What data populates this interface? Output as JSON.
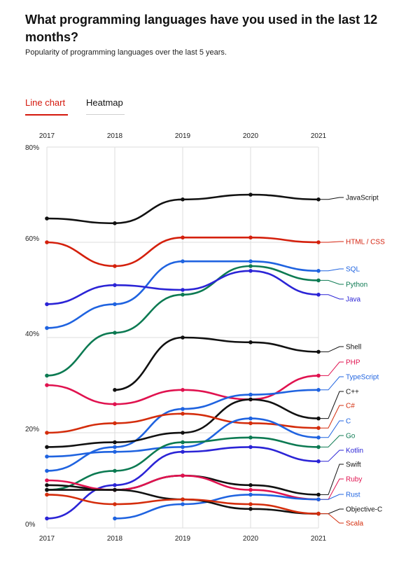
{
  "header": {
    "title": "What programming languages have you used in the last 12 months?",
    "subtitle": "Popularity of programming languages over the last 5 years."
  },
  "tabs": [
    {
      "label": "Line chart",
      "active": true
    },
    {
      "label": "Heatmap",
      "active": false
    }
  ],
  "chart_data": {
    "type": "line",
    "x": [
      "2017",
      "2018",
      "2019",
      "2020",
      "2021"
    ],
    "ylim": [
      0,
      80
    ],
    "y_ticks": [
      "0%",
      "20%",
      "40%",
      "60%",
      "80%"
    ],
    "y_tick_values": [
      0,
      20,
      40,
      60,
      80
    ],
    "grid": true,
    "legend": "right-end labels",
    "series": [
      {
        "name": "JavaScript",
        "color": "#111111",
        "values": [
          65,
          64,
          69,
          70,
          69
        ]
      },
      {
        "name": "HTML / CSS",
        "color": "#d4200c",
        "values": [
          60,
          55,
          61,
          61,
          60
        ]
      },
      {
        "name": "SQL",
        "color": "#1f63e0",
        "values": [
          42,
          47,
          56,
          56,
          54
        ]
      },
      {
        "name": "Python",
        "color": "#0c7a52",
        "values": [
          32,
          41,
          49,
          55,
          52
        ]
      },
      {
        "name": "Java",
        "color": "#2b24d6",
        "values": [
          47,
          51,
          50,
          54,
          49
        ]
      },
      {
        "name": "Shell",
        "color": "#111111",
        "values": [
          null,
          29,
          40,
          39,
          37
        ]
      },
      {
        "name": "PHP",
        "color": "#e0124f",
        "values": [
          30,
          26,
          29,
          27,
          32
        ]
      },
      {
        "name": "TypeScript",
        "color": "#1f63e0",
        "values": [
          12,
          17,
          25,
          28,
          29
        ]
      },
      {
        "name": "C++",
        "color": "#111111",
        "values": [
          17,
          18,
          20,
          27,
          23
        ]
      },
      {
        "name": "C#",
        "color": "#d42d0c",
        "values": [
          20,
          22,
          24,
          22,
          21
        ]
      },
      {
        "name": "C",
        "color": "#1f63e0",
        "values": [
          15,
          16,
          17,
          23,
          19
        ]
      },
      {
        "name": "Go",
        "color": "#0c7a52",
        "values": [
          8,
          12,
          18,
          19,
          17
        ]
      },
      {
        "name": "Kotlin",
        "color": "#2b24d6",
        "values": [
          2,
          9,
          16,
          17,
          14
        ]
      },
      {
        "name": "Swift",
        "color": "#111111",
        "values": [
          9,
          8,
          11,
          9,
          7
        ]
      },
      {
        "name": "Ruby",
        "color": "#e0124f",
        "values": [
          10,
          8,
          11,
          8,
          6
        ]
      },
      {
        "name": "Rust",
        "color": "#1f63e0",
        "values": [
          null,
          2,
          5,
          7,
          6
        ]
      },
      {
        "name": "Objective-C",
        "color": "#111111",
        "values": [
          8,
          8,
          6,
          4,
          3
        ]
      },
      {
        "name": "Scala",
        "color": "#d42d0c",
        "values": [
          7,
          5,
          6,
          5,
          3
        ]
      }
    ]
  }
}
